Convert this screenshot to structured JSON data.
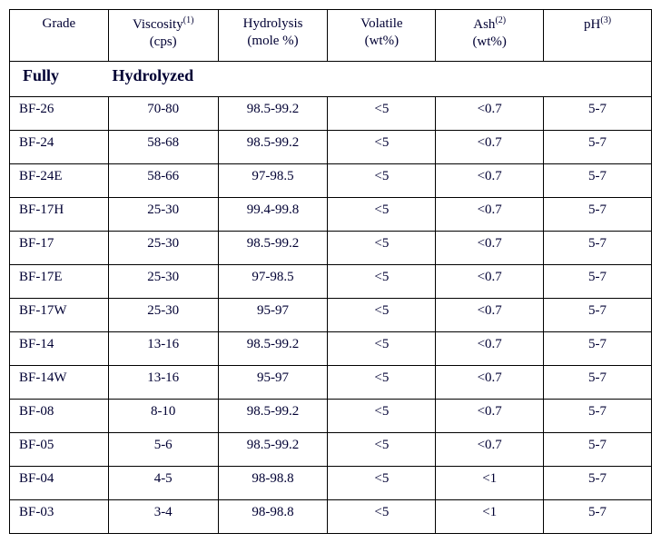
{
  "columns": {
    "grade": {
      "label": "Grade"
    },
    "viscosity": {
      "label_line1": "Viscosity",
      "sup": "(1)",
      "label_line2": "(cps)"
    },
    "hydrolysis": {
      "label_line1": "Hydrolysis",
      "label_line2": "(mole %)"
    },
    "volatile": {
      "label_line1": "Volatile",
      "label_line2": "(wt%)"
    },
    "ash": {
      "label_line1": "Ash",
      "sup": "(2)",
      "label_line2": "(wt%)"
    },
    "ph": {
      "label_line1": "pH",
      "sup": "(3)"
    }
  },
  "section": {
    "word1": "Fully",
    "word2": "Hydrolyzed"
  },
  "rows": [
    {
      "grade": "BF-26",
      "viscosity": "70-80",
      "hydrolysis": "98.5-99.2",
      "volatile": "<5",
      "ash": "<0.7",
      "ph": "5-7"
    },
    {
      "grade": "BF-24",
      "viscosity": "58-68",
      "hydrolysis": "98.5-99.2",
      "volatile": "<5",
      "ash": "<0.7",
      "ph": "5-7"
    },
    {
      "grade": "BF-24E",
      "viscosity": "58-66",
      "hydrolysis": "97-98.5",
      "volatile": "<5",
      "ash": "<0.7",
      "ph": "5-7"
    },
    {
      "grade": "BF-17H",
      "viscosity": "25-30",
      "hydrolysis": "99.4-99.8",
      "volatile": "<5",
      "ash": "<0.7",
      "ph": "5-7"
    },
    {
      "grade": "BF-17",
      "viscosity": "25-30",
      "hydrolysis": "98.5-99.2",
      "volatile": "<5",
      "ash": "<0.7",
      "ph": "5-7"
    },
    {
      "grade": "BF-17E",
      "viscosity": "25-30",
      "hydrolysis": "97-98.5",
      "volatile": "<5",
      "ash": "<0.7",
      "ph": "5-7"
    },
    {
      "grade": "BF-17W",
      "viscosity": "25-30",
      "hydrolysis": "95-97",
      "volatile": "<5",
      "ash": "<0.7",
      "ph": "5-7"
    },
    {
      "grade": "BF-14",
      "viscosity": "13-16",
      "hydrolysis": "98.5-99.2",
      "volatile": "<5",
      "ash": "<0.7",
      "ph": "5-7"
    },
    {
      "grade": "BF-14W",
      "viscosity": "13-16",
      "hydrolysis": "95-97",
      "volatile": "<5",
      "ash": "<0.7",
      "ph": "5-7"
    },
    {
      "grade": "BF-08",
      "viscosity": "8-10",
      "hydrolysis": "98.5-99.2",
      "volatile": "<5",
      "ash": "<0.7",
      "ph": "5-7"
    },
    {
      "grade": "BF-05",
      "viscosity": "5-6",
      "hydrolysis": "98.5-99.2",
      "volatile": "<5",
      "ash": "<0.7",
      "ph": "5-7"
    },
    {
      "grade": "BF-04",
      "viscosity": "4-5",
      "hydrolysis": "98-98.8",
      "volatile": "<5",
      "ash": "<1",
      "ph": "5-7"
    },
    {
      "grade": "BF-03",
      "viscosity": "3-4",
      "hydrolysis": "98-98.8",
      "volatile": "<5",
      "ash": "<1",
      "ph": "5-7"
    }
  ]
}
